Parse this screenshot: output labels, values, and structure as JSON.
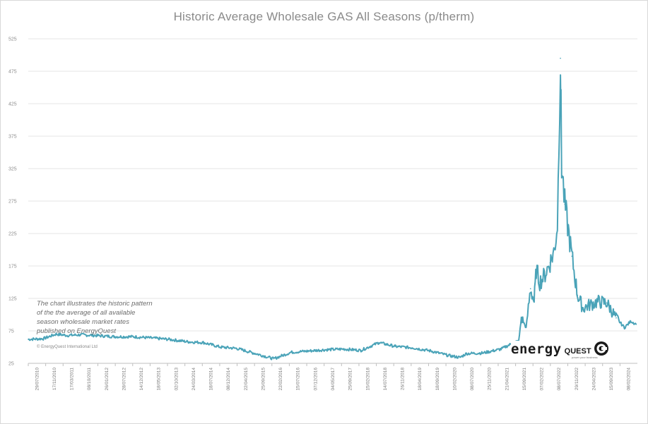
{
  "chart_data": {
    "type": "line",
    "title": "Historic Average Wholesale GAS All Seasons (p/therm)",
    "xlabel": "",
    "ylabel": "",
    "ylim": [
      25,
      525
    ],
    "yticks": [
      25,
      75,
      125,
      175,
      225,
      275,
      325,
      375,
      425,
      475,
      525
    ],
    "grid": "horizontal",
    "legend": "none",
    "line_color": "#4aa3b8",
    "xtick_labels": [
      "29/07/2010",
      "17/11/2010",
      "17/03/2011",
      "08/10/2011",
      "26/01/2012",
      "28/07/2012",
      "14/12/2012",
      "18/05/2013",
      "02/10/2013",
      "24/03/2014",
      "18/07/2014",
      "08/12/2014",
      "22/04/2015",
      "25/09/2015",
      "22/02/2016",
      "15/07/2016",
      "07/12/2016",
      "04/05/2017",
      "25/09/2017",
      "15/02/2018",
      "14/07/2018",
      "26/11/2018",
      "18/04/2019",
      "18/09/2019",
      "10/02/2020",
      "08/07/2020",
      "25/11/2020",
      "21/04/2021",
      "15/09/2021",
      "07/02/2022",
      "08/07/2022",
      "29/11/2022",
      "24/04/2023",
      "15/09/2023",
      "08/02/2024"
    ],
    "x": [
      "2010-07-29",
      "2010-12-01",
      "2011-03-17",
      "2011-06-15",
      "2011-10-08",
      "2012-01-26",
      "2012-04-20",
      "2012-07-28",
      "2012-12-14",
      "2013-05-18",
      "2013-10-02",
      "2014-03-24",
      "2014-07-18",
      "2014-12-08",
      "2015-04-22",
      "2015-09-25",
      "2016-02-22",
      "2016-07-15",
      "2016-12-07",
      "2017-05-04",
      "2017-09-25",
      "2018-02-15",
      "2018-07-14",
      "2018-11-26",
      "2019-04-18",
      "2019-09-18",
      "2020-02-10",
      "2020-05-15",
      "2020-07-08",
      "2020-11-25",
      "2021-04-21",
      "2021-07-15",
      "2021-09-15",
      "2021-10-06",
      "2021-11-15",
      "2021-12-21",
      "2022-01-20",
      "2022-02-07",
      "2022-03-08",
      "2022-04-15",
      "2022-06-01",
      "2022-07-08",
      "2022-08-01",
      "2022-08-26",
      "2022-09-05",
      "2022-10-01",
      "2022-11-29",
      "2023-01-15",
      "2023-03-01",
      "2023-04-24",
      "2023-07-01",
      "2023-09-15",
      "2023-12-01",
      "2024-02-08",
      "2024-04-01",
      "2024-05-15"
    ],
    "values": [
      62,
      63,
      70,
      68,
      69,
      68,
      67,
      66,
      66,
      64,
      62,
      58,
      57,
      50,
      48,
      40,
      32,
      42,
      44,
      46,
      47,
      45,
      57,
      51,
      49,
      44,
      37,
      34,
      40,
      41,
      47,
      55,
      60,
      95,
      80,
      140,
      120,
      170,
      150,
      160,
      180,
      200,
      240,
      495,
      330,
      270,
      190,
      130,
      110,
      115,
      120,
      118,
      95,
      80,
      90,
      85
    ],
    "annotation": [
      "The chart illustrates the historic pattern",
      "of the the average of all available",
      "season wholesale market rates",
      "published on EnergyQuest"
    ],
    "copyright": "© EnergyQuest International Ltd"
  },
  "logo": {
    "energy": "energy",
    "quest": "QUEST",
    "tagline": "power your business"
  }
}
